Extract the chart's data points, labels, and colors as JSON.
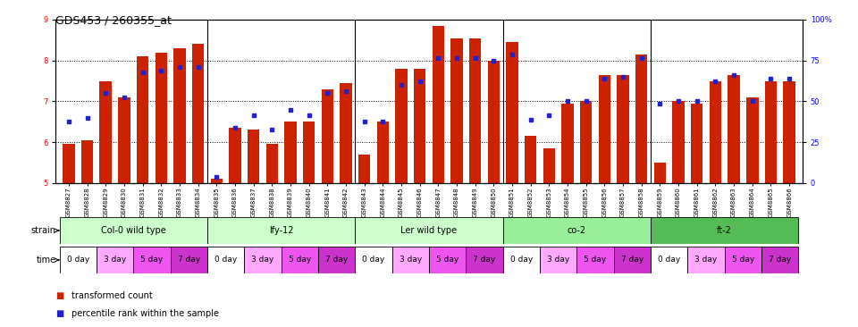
{
  "title": "GDS453 / 260355_at",
  "samples": [
    "GSM8827",
    "GSM8828",
    "GSM8829",
    "GSM8830",
    "GSM8831",
    "GSM8832",
    "GSM8833",
    "GSM8834",
    "GSM8835",
    "GSM8836",
    "GSM8837",
    "GSM8838",
    "GSM8839",
    "GSM8840",
    "GSM8841",
    "GSM8842",
    "GSM8843",
    "GSM8844",
    "GSM8845",
    "GSM8846",
    "GSM8847",
    "GSM8848",
    "GSM8849",
    "GSM8850",
    "GSM8851",
    "GSM8852",
    "GSM8853",
    "GSM8854",
    "GSM8855",
    "GSM8856",
    "GSM8857",
    "GSM8858",
    "GSM8859",
    "GSM8860",
    "GSM8861",
    "GSM8862",
    "GSM8863",
    "GSM8864",
    "GSM8865",
    "GSM8866"
  ],
  "bar_values": [
    5.95,
    6.05,
    7.5,
    7.1,
    8.1,
    8.2,
    8.3,
    8.4,
    5.1,
    6.35,
    6.3,
    5.95,
    6.5,
    6.5,
    7.3,
    7.45,
    5.7,
    6.5,
    7.8,
    7.8,
    8.85,
    8.55,
    8.55,
    8.0,
    8.45,
    6.15,
    5.85,
    6.95,
    7.0,
    7.65,
    7.65,
    8.15,
    5.5,
    7.0,
    6.95,
    7.5,
    7.65,
    7.1,
    7.5,
    7.5
  ],
  "dot_values": [
    6.5,
    6.6,
    7.2,
    7.1,
    7.7,
    7.75,
    7.85,
    7.85,
    5.15,
    6.35,
    6.65,
    6.3,
    6.8,
    6.65,
    7.2,
    7.25,
    6.5,
    6.5,
    7.4,
    7.5,
    8.05,
    8.05,
    8.05,
    8.0,
    8.15,
    6.55,
    6.65,
    7.0,
    7.0,
    7.55,
    7.6,
    8.05,
    6.95,
    7.0,
    7.0,
    7.5,
    7.65,
    7.0,
    7.55,
    7.55
  ],
  "strains": [
    {
      "label": "Col-0 wild type",
      "start": 0,
      "end": 8,
      "color": "#ccffcc"
    },
    {
      "label": "lfy-12",
      "start": 8,
      "end": 16,
      "color": "#ccffcc"
    },
    {
      "label": "Ler wild type",
      "start": 16,
      "end": 24,
      "color": "#ccffcc"
    },
    {
      "label": "co-2",
      "start": 24,
      "end": 32,
      "color": "#99ee99"
    },
    {
      "label": "ft-2",
      "start": 32,
      "end": 40,
      "color": "#55bb55"
    }
  ],
  "time_labels": [
    "0 day",
    "3 day",
    "5 day",
    "7 day"
  ],
  "time_colors": [
    "#ffffff",
    "#ffaaff",
    "#ee55ee",
    "#cc33cc"
  ],
  "bar_color": "#cc2200",
  "dot_color": "#2222cc",
  "ylim_left": [
    5,
    9
  ],
  "ylim_right": [
    0,
    100
  ],
  "yticks_left": [
    5,
    6,
    7,
    8,
    9
  ],
  "yticks_right": [
    0,
    25,
    50,
    75,
    100
  ],
  "right_tick_labels": [
    "0",
    "25",
    "50",
    "75",
    "100%"
  ],
  "bar_width": 0.65,
  "title_fontsize": 9,
  "tick_fontsize": 6,
  "label_fontsize": 7.5
}
